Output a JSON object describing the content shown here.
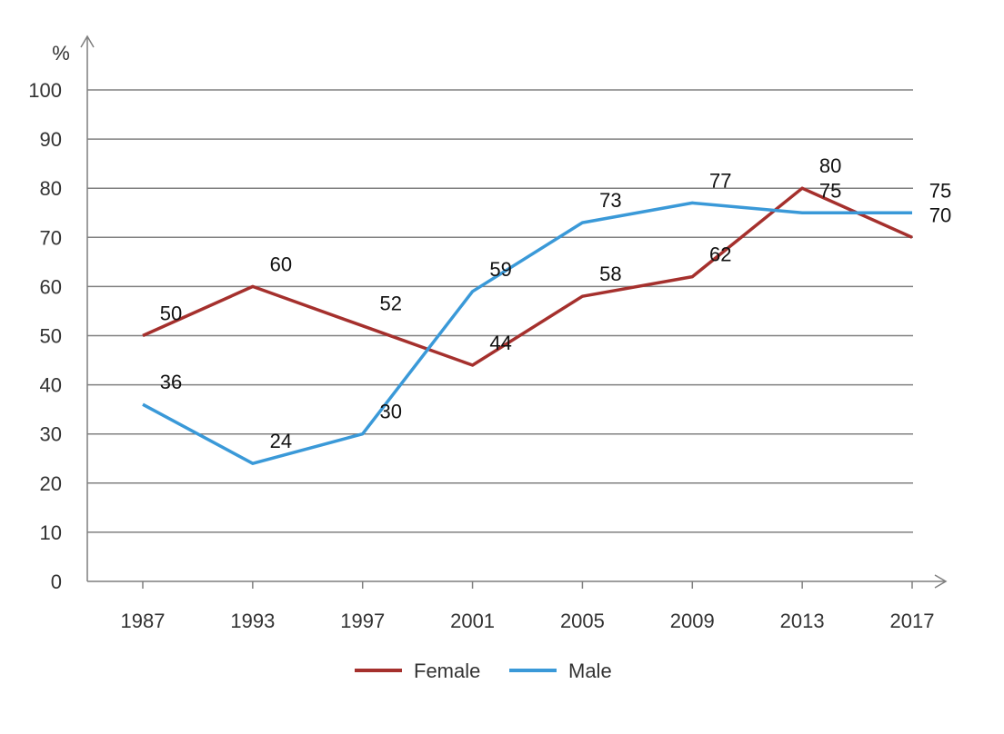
{
  "chart_data": {
    "type": "line",
    "title": "",
    "xlabel": "",
    "ylabel": "%",
    "ylim": [
      0,
      100
    ],
    "yticks": [
      "0",
      "10",
      "20",
      "30",
      "40",
      "50",
      "60",
      "70",
      "80",
      "90",
      "100"
    ],
    "categories": [
      "1987",
      "1993",
      "1997",
      "2001",
      "2005",
      "2009",
      "2013",
      "2017"
    ],
    "series": [
      {
        "name": "Female",
        "color": "#a5302d",
        "values": [
          50,
          60,
          52,
          44,
          58,
          62,
          80,
          70
        ],
        "labels": [
          "50",
          "60",
          "52",
          "44",
          "58",
          "62",
          "80",
          "70"
        ]
      },
      {
        "name": "Male",
        "color": "#3a99d8",
        "values": [
          36,
          24,
          30,
          59,
          73,
          77,
          75,
          75
        ],
        "labels": [
          "36",
          "24",
          "30",
          "59",
          "73",
          "77",
          "75",
          "75"
        ]
      }
    ],
    "grid": true,
    "legend": "bottom-center"
  }
}
